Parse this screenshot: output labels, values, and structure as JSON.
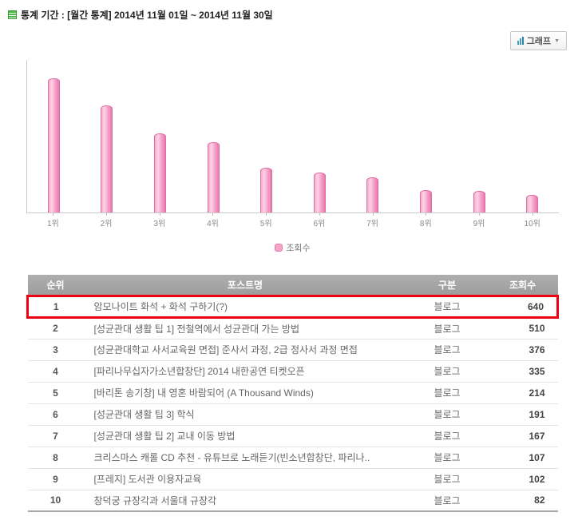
{
  "header": {
    "title_label": "통계 기간 : ",
    "title_value": "[월간 통계] 2014년 11월 01일 ~ 2014년 11월 30일",
    "graph_button_label": "그래프",
    "graph_button_caret": "▼",
    "icons": [
      "stats-list-icon",
      "bar-chart-icon",
      "dropdown-caret-icon"
    ]
  },
  "chart_data": {
    "type": "bar",
    "categories": [
      "1위",
      "2위",
      "3위",
      "4위",
      "5위",
      "6위",
      "7위",
      "8위",
      "9위",
      "10위"
    ],
    "values": [
      640,
      510,
      376,
      335,
      214,
      191,
      167,
      107,
      102,
      82
    ],
    "title": "",
    "xlabel": "",
    "ylabel": "",
    "ylim": [
      0,
      660
    ],
    "legend": "조회수",
    "legend_position": "bottom-center",
    "grid": false,
    "bar_color": "#f6a3c8",
    "bar_border_color": "#dd6da5"
  },
  "table": {
    "headers": [
      "순위",
      "포스트명",
      "구분",
      "조회수"
    ],
    "rows": [
      {
        "rank": "1",
        "title": "암모나이트 화석 + 화석 구하기(?)",
        "category": "블로그",
        "views": "640",
        "highlighted": true
      },
      {
        "rank": "2",
        "title": "[성균관대 생활 팁 1] 전철역에서 성균관대 가는 방법",
        "category": "블로그",
        "views": "510",
        "highlighted": false
      },
      {
        "rank": "3",
        "title": "[성균관대학교 사서교육원 면접] 준사서 과정, 2급 정사서 과정 면접",
        "category": "블로그",
        "views": "376",
        "highlighted": false
      },
      {
        "rank": "4",
        "title": "[파리나무십자가소년합창단] 2014 내한공연 티켓오픈",
        "category": "블로그",
        "views": "335",
        "highlighted": false
      },
      {
        "rank": "5",
        "title": "[바리톤 송기창] 내 영혼 바람되어 (A Thousand Winds)",
        "category": "블로그",
        "views": "214",
        "highlighted": false
      },
      {
        "rank": "6",
        "title": "[성균관대 생활 팁 3] 학식",
        "category": "블로그",
        "views": "191",
        "highlighted": false
      },
      {
        "rank": "7",
        "title": "[성균관대 생활 팁 2] 교내 이동 방법",
        "category": "블로그",
        "views": "167",
        "highlighted": false
      },
      {
        "rank": "8",
        "title": "크리스마스 캐롤 CD 추천 - 유튜브로 노래듣기(빈소년합창단, 파리나..",
        "category": "블로그",
        "views": "107",
        "highlighted": false
      },
      {
        "rank": "9",
        "title": "[프레지] 도서관 이용자교육",
        "category": "블로그",
        "views": "102",
        "highlighted": false
      },
      {
        "rank": "10",
        "title": "창덕궁 규장각과 서울대 규장각",
        "category": "블로그",
        "views": "82",
        "highlighted": false
      }
    ],
    "highlight_color": "#ec0011"
  }
}
